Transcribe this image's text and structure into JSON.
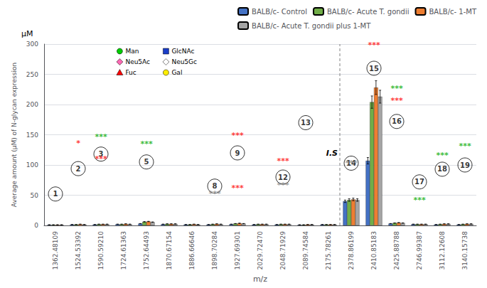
{
  "chart_data": {
    "type": "bar",
    "xlabel": "m/z",
    "ylabel": "Average amount (μM) of N-glycan expression",
    "categories": [
      "1362.48109",
      "1524.53392",
      "1590.59210",
      "1724.61363",
      "1752.64493",
      "1870.67154",
      "1886.66646",
      "1898.70284",
      "1927.69301",
      "2029.72470",
      "2048.71929",
      "2089.74584",
      "2175.78261",
      "2378.86199",
      "2410.85183",
      "2425.88788",
      "2746.99387",
      "3112.12608",
      "3140.15738"
    ],
    "series": [
      {
        "name": "BALB/c- Control",
        "color": "#4472C4",
        "values": [
          1.0,
          1.5,
          1.5,
          2.0,
          3.0,
          2.0,
          1.5,
          1.5,
          2.0,
          1.5,
          1.5,
          1.0,
          1.5,
          40.0,
          107.0,
          3.0,
          2.0,
          1.5,
          1.5
        ],
        "errors": [
          0.05,
          0.075,
          0.075,
          0.1,
          0.15,
          0.1,
          0.075,
          0.075,
          0.1,
          0.075,
          0.075,
          0.05,
          0.075,
          2.0,
          5.35,
          0.15,
          0.1,
          0.075,
          0.075
        ]
      },
      {
        "name": "BALB/c- Acute T. gondii",
        "color": "#70AD47",
        "values": [
          1.0,
          1.5,
          2.0,
          2.0,
          6.0,
          2.5,
          1.5,
          2.0,
          3.0,
          2.0,
          2.0,
          1.0,
          1.5,
          42.0,
          204.0,
          4.0,
          2.0,
          2.0,
          2.0
        ],
        "errors": [
          0.05,
          0.075,
          0.1,
          0.1,
          0.3,
          0.125,
          0.075,
          0.1,
          0.15,
          0.1,
          0.1,
          0.05,
          0.075,
          2.1,
          10.2,
          0.2,
          0.1,
          0.1,
          0.1
        ]
      },
      {
        "name": "BALB/c- 1-MT",
        "color": "#ED7D31",
        "values": [
          1.0,
          2.0,
          2.0,
          2.5,
          6.5,
          2.5,
          2.0,
          2.5,
          3.5,
          2.0,
          2.0,
          1.5,
          1.5,
          43.0,
          228.0,
          4.5,
          2.0,
          2.5,
          2.5
        ],
        "errors": [
          0.05,
          0.1,
          0.1,
          0.125,
          0.325,
          0.125,
          0.1,
          0.125,
          0.175,
          0.1,
          0.1,
          0.075,
          0.075,
          2.15,
          11.4,
          0.225,
          0.1,
          0.125,
          0.125
        ]
      },
      {
        "name": "BALB/c- Acute T. gondii plus 1-MT",
        "color": "#A5A5A5",
        "values": [
          1.0,
          1.5,
          2.0,
          2.0,
          5.5,
          2.5,
          1.5,
          2.0,
          3.0,
          2.0,
          2.0,
          1.5,
          1.5,
          42.0,
          213.0,
          4.0,
          2.0,
          2.5,
          2.5
        ],
        "errors": [
          0.05,
          0.075,
          0.1,
          0.1,
          0.275,
          0.125,
          0.075,
          0.1,
          0.15,
          0.1,
          0.1,
          0.075,
          0.075,
          2.1,
          10.65,
          0.2,
          0.1,
          0.125,
          0.125
        ]
      }
    ],
    "ylim": [
      0,
      300
    ],
    "yticks": [
      0,
      50,
      100,
      150,
      200,
      250,
      300
    ],
    "grid": true,
    "legend": "upper right",
    "annotations": [
      {
        "text": "μM"
      },
      {
        "text": "I.S",
        "after": "2175.78261",
        "y": 113,
        "line_style": "dashed"
      },
      {
        "text": "1",
        "category": "1362.48109",
        "y": 52,
        "marker": "circle"
      },
      {
        "text": "2",
        "category": "1524.53392",
        "y": 94,
        "marker": "circle"
      },
      {
        "text": "3",
        "category": "1590.59210",
        "y": 118,
        "marker": "circle"
      },
      {
        "text": "5",
        "category": "1752.64493",
        "y": 105,
        "marker": "circle"
      },
      {
        "text": "8",
        "category": "1898.70284",
        "y": 65,
        "marker": "circle"
      },
      {
        "text": "9",
        "category": "1927.69301",
        "y": 120,
        "marker": "circle"
      },
      {
        "text": "12",
        "category": "2048.71929",
        "y": 80,
        "marker": "circle"
      },
      {
        "text": "13",
        "category": "2089.74584",
        "y": 170,
        "marker": "circle"
      },
      {
        "text": "14",
        "category": "2378.86199",
        "y": 103,
        "marker": "circle"
      },
      {
        "text": "15",
        "category": "2410.85183",
        "y": 260,
        "marker": "circle"
      },
      {
        "text": "16",
        "category": "2425.88788",
        "y": 172,
        "marker": "circle"
      },
      {
        "text": "17",
        "category": "2746.99387",
        "y": 72,
        "marker": "circle"
      },
      {
        "text": "18",
        "category": "3112.12608",
        "y": 93,
        "marker": "circle"
      },
      {
        "text": "19",
        "category": "3140.15738",
        "y": 100,
        "marker": "circle"
      },
      {
        "text": "*",
        "category": "1524.53392",
        "y": 130,
        "color": "#ff0000"
      },
      {
        "text": "***",
        "category": "1590.59210",
        "y": 103,
        "color": "#ff0000"
      },
      {
        "text": "***",
        "category": "1590.59210",
        "y": 140,
        "color": "#00aa00"
      },
      {
        "text": "***",
        "category": "1752.64493",
        "y": 128,
        "color": "#00aa00"
      },
      {
        "text": "***",
        "category": "1898.70284",
        "y": 46,
        "color": "#888888"
      },
      {
        "text": "***",
        "category": "1927.69301",
        "y": 142,
        "color": "#ff0000"
      },
      {
        "text": "***",
        "category": "1927.69301",
        "y": 55,
        "color": "#ff0000"
      },
      {
        "text": "***",
        "category": "2048.71929",
        "y": 60,
        "color": "#888888"
      },
      {
        "text": "***",
        "category": "2048.71929",
        "y": 100,
        "color": "#ff0000"
      },
      {
        "text": "***",
        "category": "2378.86199",
        "y": 96,
        "color": "#888888"
      },
      {
        "text": "***",
        "category": "2410.85183",
        "y": 292,
        "color": "#ff0000"
      },
      {
        "text": "***",
        "category": "2425.88788",
        "y": 200,
        "color": "#ff0000"
      },
      {
        "text": "***",
        "category": "2425.88788",
        "y": 220,
        "color": "#00aa00"
      },
      {
        "text": "***",
        "category": "2746.99387",
        "y": 35,
        "color": "#00aa00"
      },
      {
        "text": "***",
        "category": "3112.12608",
        "y": 110,
        "color": "#00aa00"
      },
      {
        "text": "***",
        "category": "3140.15738",
        "y": 125,
        "color": "#00aa00"
      }
    ],
    "symbol_legend": [
      {
        "name": "Man",
        "color": "#00cc00",
        "marker": "circle"
      },
      {
        "name": "GlcNAc",
        "color": "#1a3ec8",
        "marker": "square"
      },
      {
        "name": "Neu5Ac",
        "color": "#ff69b4",
        "marker": "diamond"
      },
      {
        "name": "Neu5Gc",
        "color": "#ffffff",
        "marker": "diamond"
      },
      {
        "name": "Fuc",
        "color": "#ff0000",
        "marker": "triangle"
      },
      {
        "name": "Gal",
        "color": "#ffee00",
        "marker": "circle"
      }
    ]
  }
}
